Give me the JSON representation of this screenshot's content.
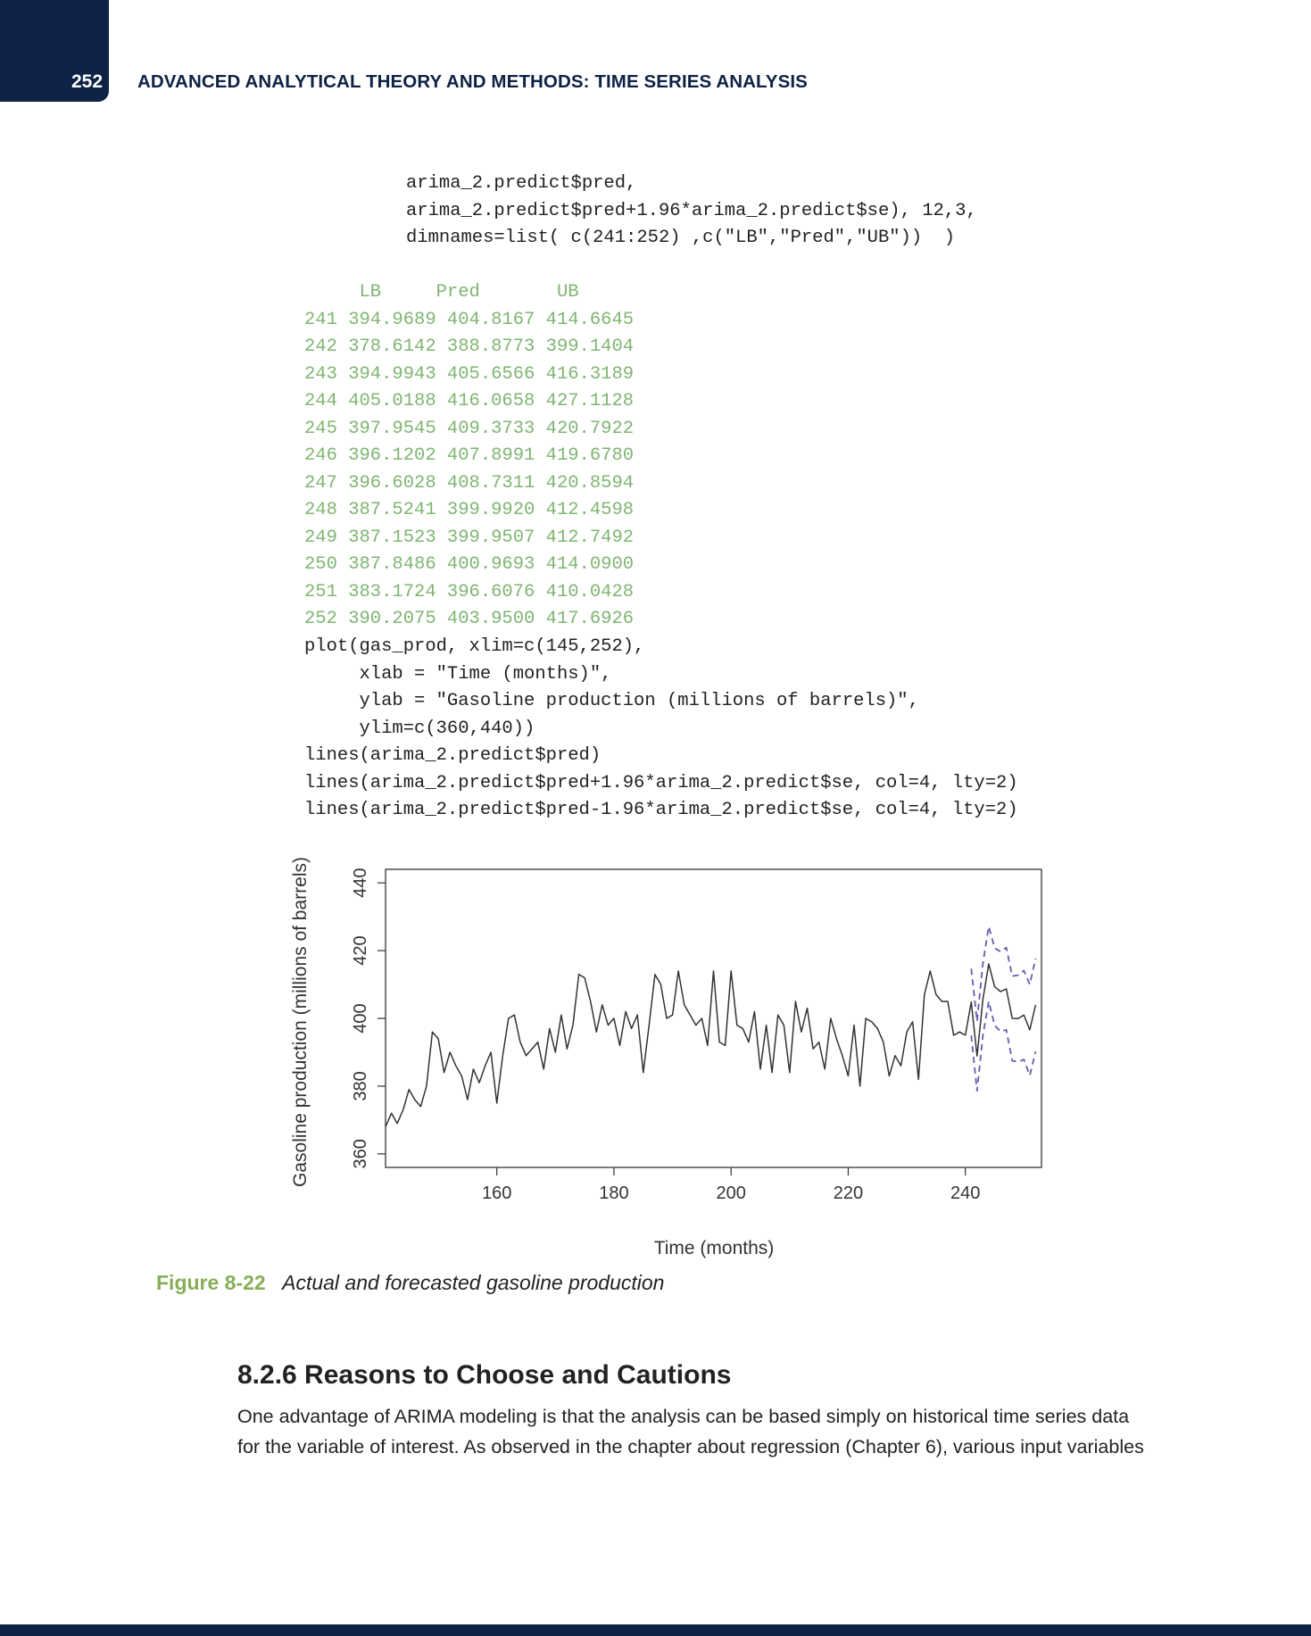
{
  "header": {
    "page_number": "252",
    "running_head": "ADVANCED ANALYTICAL THEORY AND METHODS: TIME SERIES ANALYSIS"
  },
  "code_block_1": [
    "arima_2.predict$pred,",
    "arima_2.predict$pred+1.96*arima_2.predict$se), 12,3,",
    "dimnames=list( c(241:252) ,c(\"LB\",\"Pred\",\"UB\"))  )"
  ],
  "output_table": {
    "header": "     LB     Pred       UB",
    "rows": [
      "241 394.9689 404.8167 414.6645",
      "242 378.6142 388.8773 399.1404",
      "243 394.9943 405.6566 416.3189",
      "244 405.0188 416.0658 427.1128",
      "245 397.9545 409.3733 420.7922",
      "246 396.1202 407.8991 419.6780",
      "247 396.6028 408.7311 420.8594",
      "248 387.5241 399.9920 412.4598",
      "249 387.1523 399.9507 412.7492",
      "250 387.8486 400.9693 414.0900",
      "251 383.1724 396.6076 410.0428",
      "252 390.2075 403.9500 417.6926"
    ]
  },
  "code_block_2": [
    "plot(gas_prod, xlim=c(145,252),",
    "     xlab = \"Time (months)\",",
    "     ylab = \"Gasoline production (millions of barrels)\",",
    "     ylim=c(360,440))",
    "lines(arima_2.predict$pred)",
    "lines(arima_2.predict$pred+1.96*arima_2.predict$se, col=4, lty=2)",
    "lines(arima_2.predict$pred-1.96*arima_2.predict$se, col=4, lty=2)"
  ],
  "chart_data": {
    "type": "line",
    "xlabel": "Time (months)",
    "ylabel": "Gasoline production (millions of barrels)",
    "xlim": [
      145,
      252
    ],
    "ylim": [
      360,
      440
    ],
    "xticks": [
      160,
      180,
      200,
      220,
      240
    ],
    "yticks": [
      360,
      380,
      400,
      420,
      440
    ],
    "grid": false,
    "series": [
      {
        "role": "actual",
        "color": "#333333",
        "style": "solid",
        "x": [
          141,
          142,
          143,
          144,
          145,
          146,
          147,
          148,
          149,
          150,
          151,
          152,
          153,
          154,
          155,
          156,
          157,
          158,
          159,
          160,
          161,
          162,
          163,
          164,
          165,
          166,
          167,
          168,
          169,
          170,
          171,
          172,
          173,
          174,
          175,
          176,
          177,
          178,
          179,
          180,
          181,
          182,
          183,
          184,
          185,
          186,
          187,
          188,
          189,
          190,
          191,
          192,
          193,
          194,
          195,
          196,
          197,
          198,
          199,
          200,
          201,
          202,
          203,
          204,
          205,
          206,
          207,
          208,
          209,
          210,
          211,
          212,
          213,
          214,
          215,
          216,
          217,
          218,
          219,
          220,
          221,
          222,
          223,
          224,
          225,
          226,
          227,
          228,
          229,
          230,
          231,
          232,
          233,
          234,
          235,
          236,
          237,
          238,
          239,
          240
        ],
        "values": [
          368,
          372,
          369,
          373,
          379,
          376,
          374,
          380,
          396,
          394,
          384,
          390,
          386,
          383,
          376,
          385,
          381,
          386,
          390,
          375,
          389,
          400,
          401,
          393,
          389,
          391,
          393,
          385,
          397,
          390,
          401,
          391,
          398,
          413,
          412,
          405,
          396,
          404,
          398,
          400,
          392,
          402,
          397,
          401,
          384,
          398,
          413,
          410,
          400,
          401,
          414,
          404,
          401,
          398,
          400,
          392,
          414,
          393,
          392,
          414,
          398,
          397,
          393,
          402,
          385,
          398,
          384,
          401,
          398,
          384,
          405,
          396,
          403,
          391,
          393,
          385,
          400,
          394,
          389,
          383,
          398,
          380,
          400,
          399,
          397,
          393,
          383,
          389,
          386,
          396,
          399,
          382,
          407,
          414,
          407,
          405,
          405,
          395,
          396,
          395
        ]
      },
      {
        "role": "forecast",
        "color": "#333333",
        "style": "solid",
        "x": [
          240,
          241,
          242,
          243,
          244,
          245,
          246,
          247,
          248,
          249,
          250,
          251,
          252
        ],
        "values": [
          395,
          404.8167,
          388.8773,
          405.6566,
          416.0658,
          409.3733,
          407.8991,
          408.7311,
          399.992,
          399.9507,
          400.9693,
          396.6076,
          403.95
        ]
      },
      {
        "role": "upper bound",
        "color": "#5f5fb0",
        "style": "dashed",
        "x": [
          241,
          242,
          243,
          244,
          245,
          246,
          247,
          248,
          249,
          250,
          251,
          252
        ],
        "values": [
          414.6645,
          399.1404,
          416.3189,
          427.1128,
          420.7922,
          419.678,
          420.8594,
          412.4598,
          412.7492,
          414.09,
          410.0428,
          417.6926
        ]
      },
      {
        "role": "lower bound",
        "color": "#5f5fb0",
        "style": "dashed",
        "x": [
          241,
          242,
          243,
          244,
          245,
          246,
          247,
          248,
          249,
          250,
          251,
          252
        ],
        "values": [
          394.9689,
          378.6142,
          394.9943,
          405.0188,
          397.9545,
          396.1202,
          396.6028,
          387.5241,
          387.1523,
          387.8486,
          383.1724,
          390.2075
        ]
      }
    ]
  },
  "figure": {
    "label": "Figure 8-22",
    "caption": "Actual and forecasted gasoline production"
  },
  "section": {
    "heading": "8.2.6 Reasons to Choose and Cautions",
    "body": "One advantage of ARIMA modeling is that the analysis can be based simply on historical time series data for the variable of interest. As observed in the chapter about regression (Chapter 6), various input variables"
  }
}
